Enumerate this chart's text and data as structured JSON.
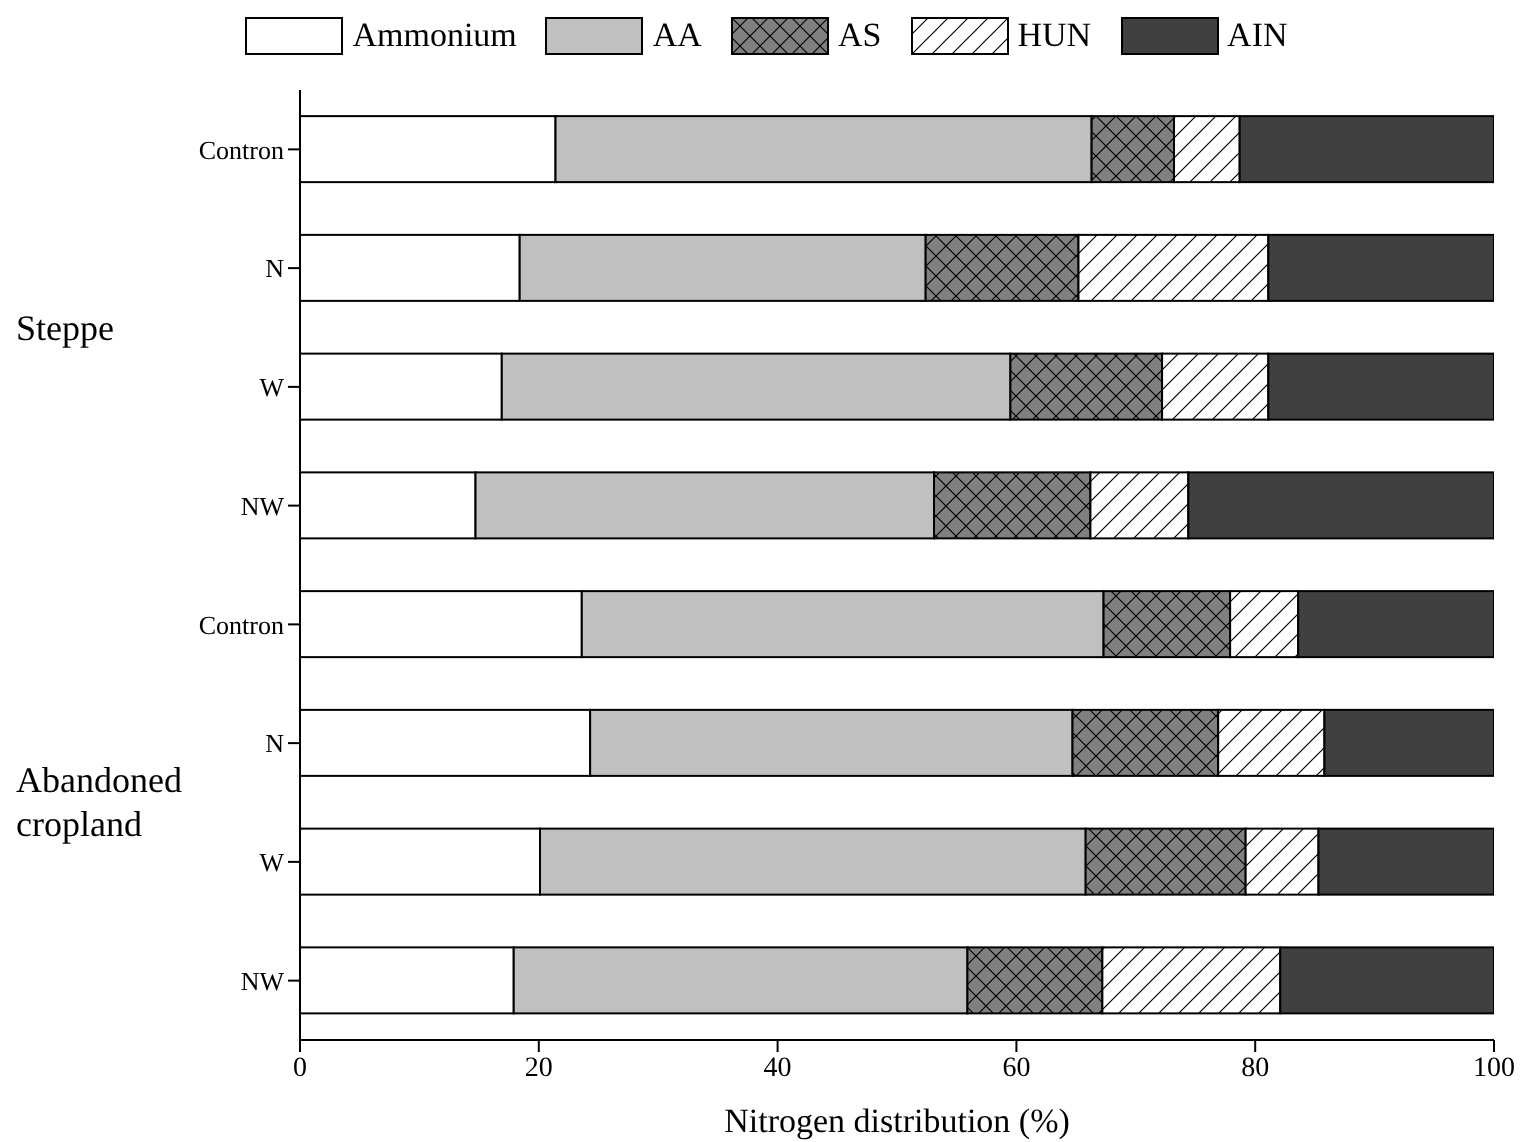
{
  "chart_data": {
    "type": "bar",
    "orientation": "horizontal",
    "stacked": true,
    "xlabel": "Nitrogen distribution (%)",
    "categories": [
      "Contron",
      "N",
      "W",
      "NW",
      "Contron",
      "N",
      "W",
      "NW"
    ],
    "series": [
      {
        "name": "Ammonium",
        "color": "#ffffff",
        "values": [
          21.4,
          18.4,
          16.9,
          14.7,
          23.6,
          24.3,
          20.1,
          17.9
        ]
      },
      {
        "name": "AA",
        "color": "#c0c0c0",
        "values": [
          44.9,
          34.0,
          42.6,
          38.4,
          43.7,
          40.4,
          45.7,
          38.0
        ]
      },
      {
        "name": "AS",
        "color": "#808080",
        "values": [
          6.9,
          12.8,
          12.7,
          13.1,
          10.6,
          12.2,
          13.4,
          11.3
        ]
      },
      {
        "name": "HUN",
        "color": "#ffffff",
        "values": [
          5.5,
          15.9,
          8.9,
          8.2,
          5.7,
          8.9,
          6.1,
          14.9
        ]
      },
      {
        "name": "AIN",
        "color": "#404040",
        "values": [
          21.3,
          18.9,
          18.9,
          25.6,
          16.4,
          14.2,
          14.7,
          17.9
        ]
      }
    ],
    "xlim": [
      0,
      100
    ],
    "xticks": [
      0,
      20,
      40,
      60,
      80,
      100
    ],
    "legend": "top",
    "annotations": [
      "Steppe",
      "Abandoned cropland"
    ]
  }
}
